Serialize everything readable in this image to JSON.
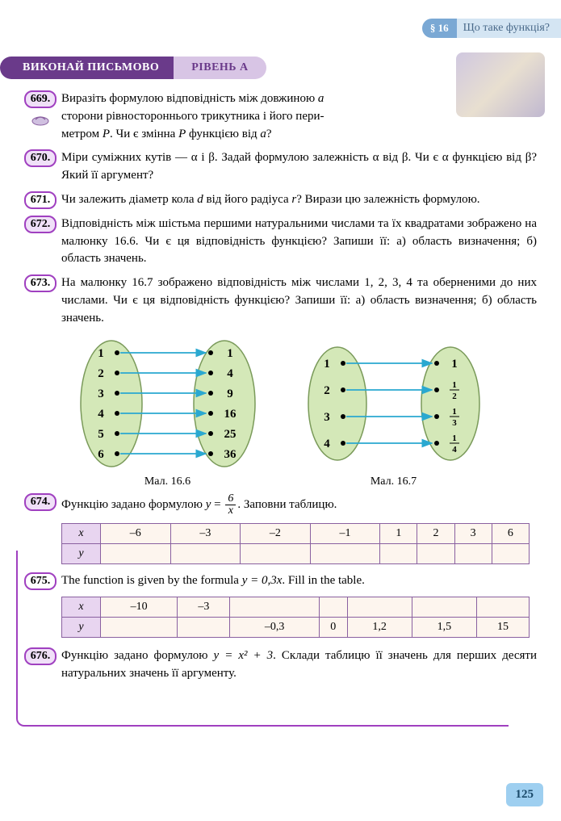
{
  "header": {
    "tag": "§ 16",
    "title": "Що таке функція?"
  },
  "ribbon": {
    "main": "ВИКОНАЙ ПИСЬМОВО",
    "level": "РІВЕНЬ А"
  },
  "problems": {
    "p669": {
      "num": "669.",
      "text_a": "Виразіть формулою відповідність між довжиною ",
      "var_a": "a",
      "text_b": " сторони рівностороннього трикутника і його пери-",
      "text_c": "метром ",
      "var_p1": "P",
      "text_d": ". Чи є змінна ",
      "var_p2": "P",
      "text_e": " функцією від ",
      "var_a2": "a",
      "text_f": "?"
    },
    "p670": {
      "num": "670.",
      "text": "Міри суміжних кутів — α і β. Задай формулою залежність α від β. Чи є α функцією від β? Який її аргумент?"
    },
    "p671": {
      "num": "671.",
      "text_a": "Чи залежить діаметр кола ",
      "var_d": "d",
      "text_b": " від його радіуса ",
      "var_r": "r",
      "text_c": "? Вирази цю залежність формулою."
    },
    "p672": {
      "num": "672.",
      "text": "Відповідність між шістьма першими натуральними числами та їх квадратами зображено на малюнку 16.6. Чи є ця відповідність функцією? Запиши її: а) область визначення; б) область значень."
    },
    "p673": {
      "num": "673.",
      "text": "На малюнку 16.7 зображено відповідність між числами 1, 2, 3, 4 та оберненими до них числами. Чи є ця відповідність функцією? Запиши її: а) область визначення; б) область значень."
    },
    "p674": {
      "num": "674.",
      "text_a": "Функцію задано формулою ",
      "formula_y": "y",
      "formula_eq": " = ",
      "frac_num": "6",
      "frac_den": "x",
      "text_b": ". Заповни таблицю."
    },
    "p675": {
      "num": "675.",
      "text_a": "The function is given by the formula ",
      "formula": "y = 0,3x",
      "text_b": ". Fill in the table."
    },
    "p676": {
      "num": "676.",
      "text_a": "Функцію задано формулою ",
      "formula": "y = x² + 3",
      "text_b": ". Склади таблицю її значень для перших десяти натуральних значень її аргументу."
    }
  },
  "diagram1": {
    "left": [
      "1",
      "2",
      "3",
      "4",
      "5",
      "6"
    ],
    "right": [
      "1",
      "4",
      "9",
      "16",
      "25",
      "36"
    ],
    "caption": "Мал. 16.6",
    "oval_fill": "#d4e8b8",
    "oval_stroke": "#7a9a5a",
    "arrow_color": "#2aa8d0"
  },
  "diagram2": {
    "left": [
      "1",
      "2",
      "3",
      "4"
    ],
    "right_int": "1",
    "right_fracs": [
      [
        "1",
        "2"
      ],
      [
        "1",
        "3"
      ],
      [
        "1",
        "4"
      ]
    ],
    "caption": "Мал. 16.7",
    "oval_fill": "#d4e8b8",
    "oval_stroke": "#7a9a5a",
    "arrow_color": "#2aa8d0"
  },
  "table674": {
    "x_label": "x",
    "y_label": "y",
    "x_values": [
      "–6",
      "–3",
      "–2",
      "–1",
      "1",
      "2",
      "3",
      "6"
    ],
    "cell_bg": "#fdf5ee",
    "head_bg": "#e8d5f0",
    "border": "#8a60a0"
  },
  "table675": {
    "x_label": "x",
    "y_label": "y",
    "x_values": [
      "–10",
      "–3",
      "",
      "",
      "",
      "",
      ""
    ],
    "y_values": [
      "",
      "",
      "–0,3",
      "0",
      "1,2",
      "1,5",
      "15"
    ]
  },
  "page_number": "125",
  "colors": {
    "purple": "#a040c0",
    "ribbon_purple": "#6a3a8a",
    "ribbon_light": "#d8c5e5",
    "header_blue": "#7aa8d4",
    "header_light": "#d4e5f3",
    "pagenum_bg": "#9ecff0"
  }
}
